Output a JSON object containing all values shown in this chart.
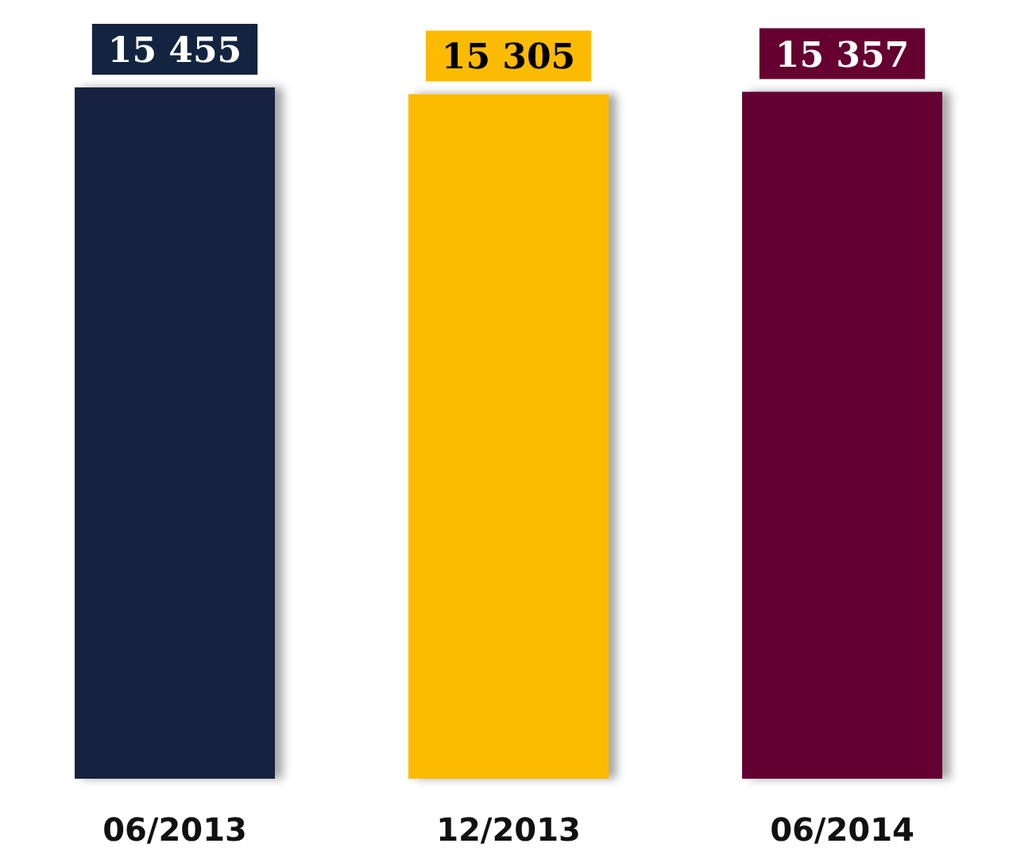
{
  "chart_data": {
    "type": "bar",
    "categories": [
      "06/2013",
      "12/2013",
      "06/2014"
    ],
    "values": [
      15455,
      15305,
      15357
    ],
    "colors": [
      "#12243f",
      "#fdbb00",
      "#650030"
    ],
    "value_labels": [
      "15 455",
      "15 305",
      "15 357"
    ],
    "tick_labels": "x"
  }
}
